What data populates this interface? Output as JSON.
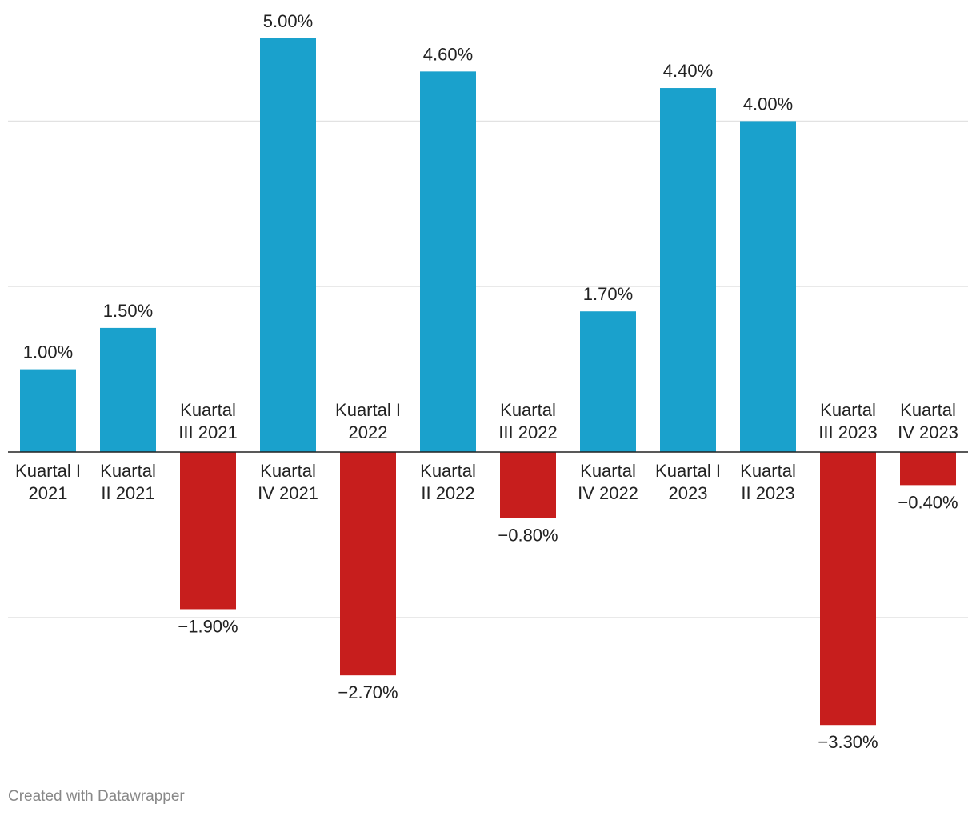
{
  "chart_data": {
    "type": "bar",
    "title": "",
    "xlabel": "",
    "ylabel": "",
    "ylim": [
      -3.3,
      5.0
    ],
    "gridlines": [
      -2,
      2,
      4
    ],
    "positive_color": "#1aa1cc",
    "negative_color": "#c71e1d",
    "categories": [
      [
        "Kuartal I",
        "2021"
      ],
      [
        "Kuartal",
        "II 2021"
      ],
      [
        "Kuartal",
        "III 2021"
      ],
      [
        "Kuartal",
        "IV 2021"
      ],
      [
        "Kuartal I",
        "2022"
      ],
      [
        "Kuartal",
        "II 2022"
      ],
      [
        "Kuartal",
        "III 2022"
      ],
      [
        "Kuartal",
        "IV 2022"
      ],
      [
        "Kuartal I",
        "2023"
      ],
      [
        "Kuartal",
        "II 2023"
      ],
      [
        "Kuartal",
        "III 2023"
      ],
      [
        "Kuartal",
        "IV 2023"
      ]
    ],
    "values": [
      1.0,
      1.5,
      -1.9,
      5.0,
      -2.7,
      4.6,
      -0.8,
      1.7,
      4.4,
      4.0,
      -3.3,
      -0.4
    ],
    "value_labels": [
      "1.00%",
      "1.50%",
      "−1.90%",
      "5.00%",
      "−2.70%",
      "4.60%",
      "−0.80%",
      "1.70%",
      "4.40%",
      "4.00%",
      "−3.30%",
      "−0.40%"
    ]
  },
  "footer": {
    "credit": "Created with Datawrapper"
  }
}
